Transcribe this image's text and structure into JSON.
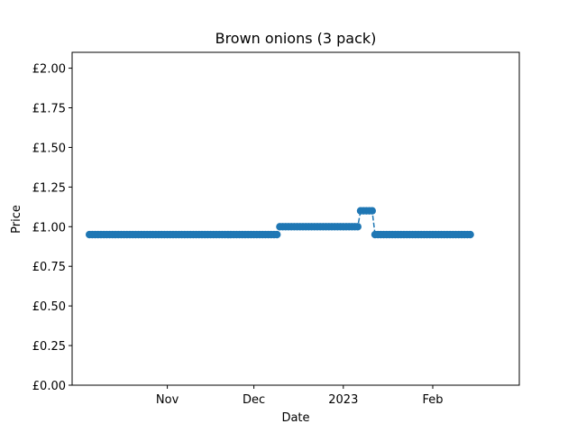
{
  "chart_data": {
    "type": "line",
    "title": "Brown onions (3 pack)",
    "xlabel": "Date",
    "ylabel": "Price",
    "xlim": [
      "2022-09-29",
      "2023-03-03"
    ],
    "ylim": [
      0,
      2.1
    ],
    "x_ticks": [
      {
        "date": "2022-11-01",
        "label": "Nov"
      },
      {
        "date": "2022-12-01",
        "label": "Dec"
      },
      {
        "date": "2023-01-01",
        "label": "2023"
      },
      {
        "date": "2023-02-01",
        "label": "Feb"
      }
    ],
    "y_ticks": [
      {
        "value": 0.0,
        "label": "£0.00"
      },
      {
        "value": 0.25,
        "label": "£0.25"
      },
      {
        "value": 0.5,
        "label": "£0.50"
      },
      {
        "value": 0.75,
        "label": "£0.75"
      },
      {
        "value": 1.0,
        "label": "£1.00"
      },
      {
        "value": 1.25,
        "label": "£1.25"
      },
      {
        "value": 1.5,
        "label": "£1.50"
      },
      {
        "value": 1.75,
        "label": "£1.75"
      },
      {
        "value": 2.0,
        "label": "£2.00"
      }
    ],
    "grid": false,
    "series": [
      {
        "color": "#1f77b4",
        "line_style": "dashed",
        "marker": "circle",
        "segments": [
          {
            "start": "2022-10-05",
            "end": "2022-12-09",
            "value": 0.95
          },
          {
            "start": "2022-12-10",
            "end": "2023-01-06",
            "value": 1.0
          },
          {
            "start": "2023-01-07",
            "end": "2023-01-11",
            "value": 1.1
          },
          {
            "start": "2023-01-12",
            "end": "2023-02-14",
            "value": 0.95
          }
        ]
      }
    ]
  }
}
